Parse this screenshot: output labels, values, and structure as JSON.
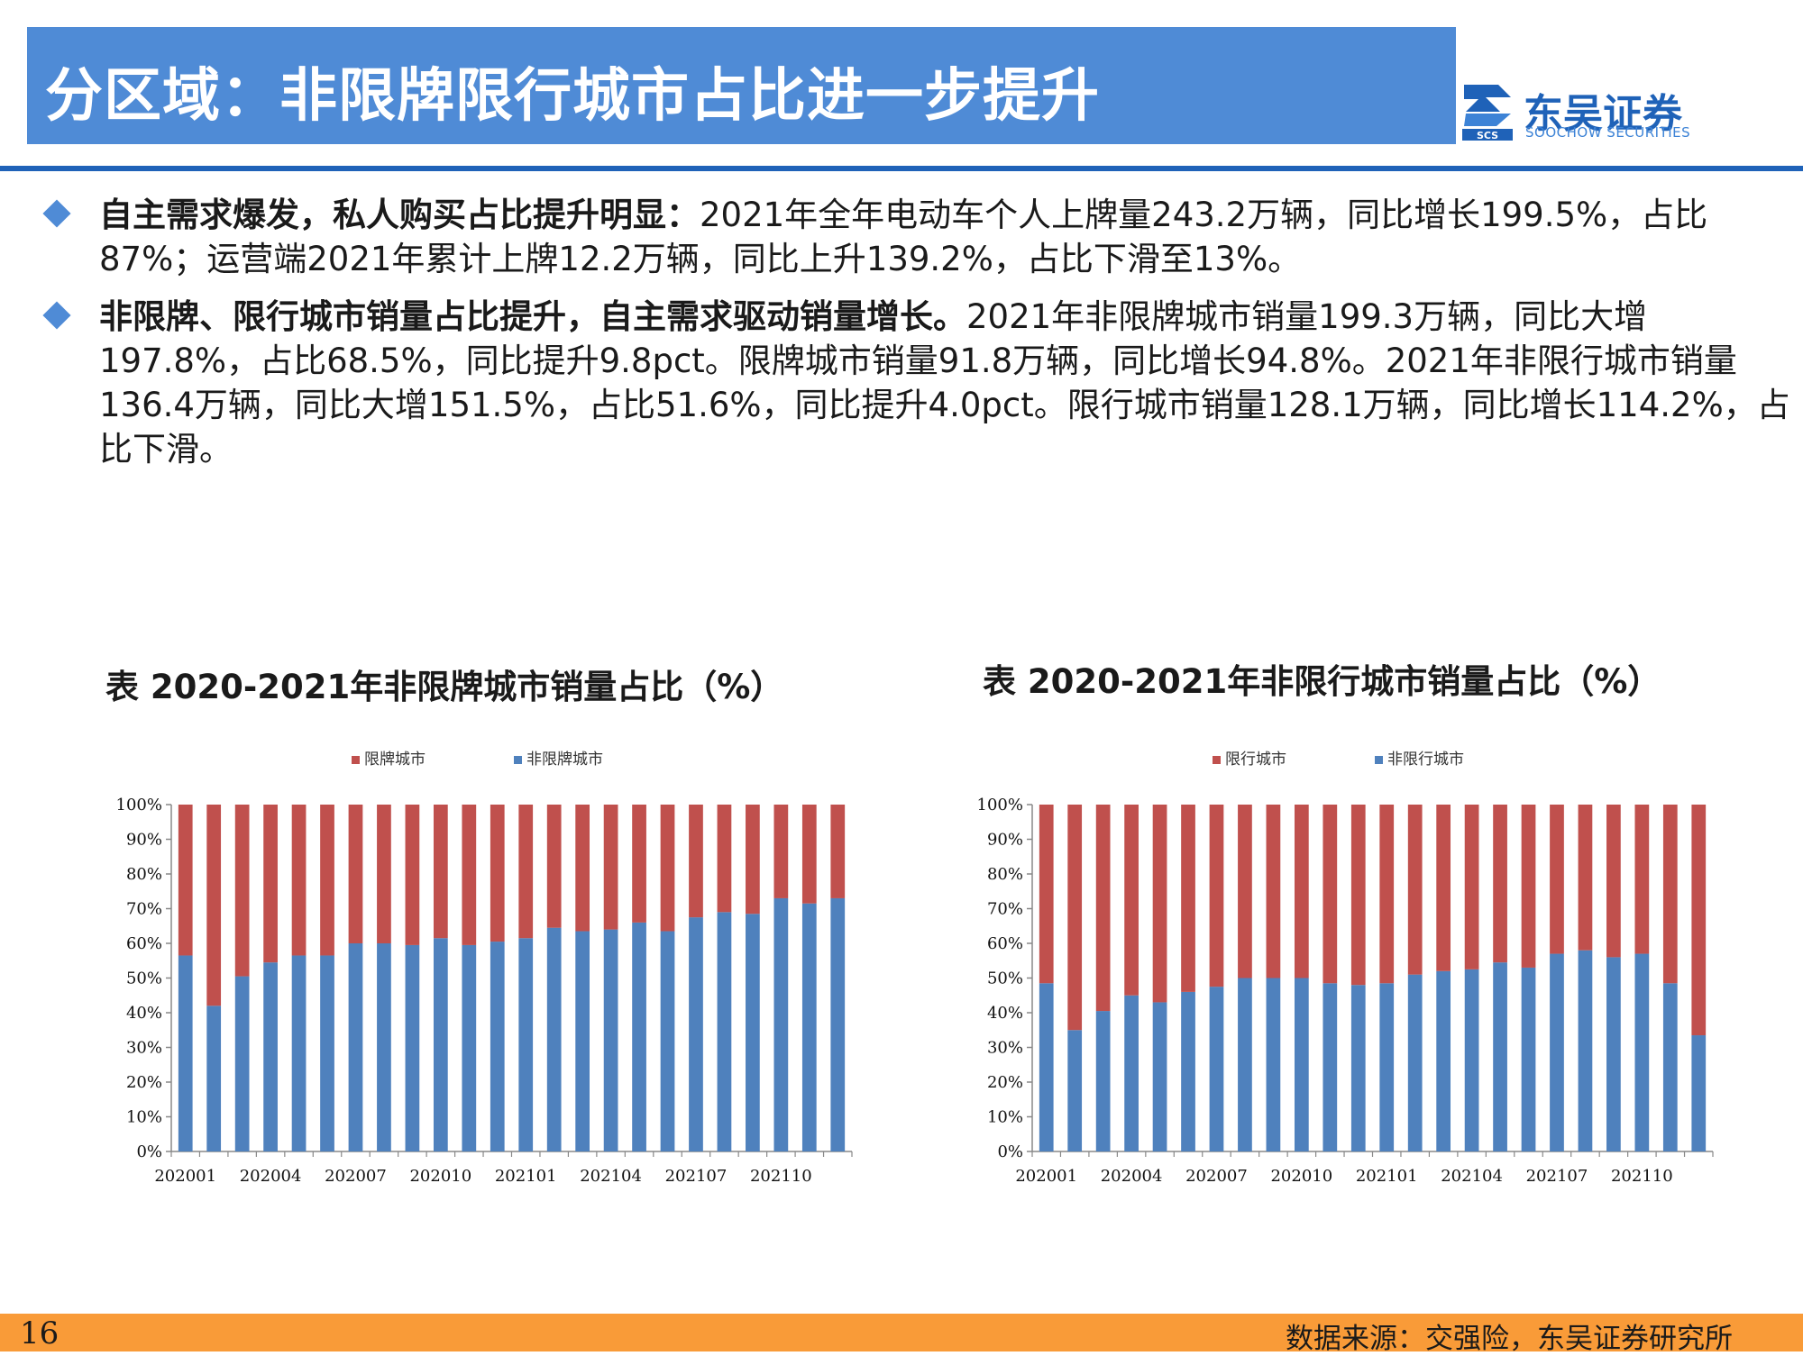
{
  "header": {
    "title": "分区域：非限牌限行城市占比进一步提升",
    "logo_cn": "东吴证券",
    "logo_en": "SOOCHOW SECURITIES",
    "logo_mark_text": "SCS"
  },
  "bullets": [
    {
      "bold": "自主需求爆发，私人购买占比提升明显：",
      "text": "2021年全年电动车个人上牌量243.2万辆，同比增长199.5%，占比87%；运营端2021年累计上牌12.2万辆，同比上升139.2%，占比下滑至13%。"
    },
    {
      "bold": "非限牌、限行城市销量占比提升，自主需求驱动销量增长。",
      "text": "2021年非限牌城市销量199.3万辆，同比大增197.8%，占比68.5%，同比提升9.8pct。限牌城市销量91.8万辆，同比增长94.8%。2021年非限行城市销量136.4万辆，同比大增151.5%，占比51.6%，同比提升4.0pct。限行城市销量128.1万辆，同比增长114.2%，占比下滑。"
    }
  ],
  "colors": {
    "blue": "#4f81bd",
    "red": "#c0504d",
    "axis": "#888888"
  },
  "chart_data": [
    {
      "type": "bar",
      "stacked": true,
      "percent": true,
      "title": "表 2020-2021年非限牌城市销量占比（%）",
      "x": [
        "202001",
        "202002",
        "202003",
        "202004",
        "202005",
        "202006",
        "202007",
        "202008",
        "202009",
        "202010",
        "202011",
        "202012",
        "202101",
        "202102",
        "202103",
        "202104",
        "202105",
        "202106",
        "202107",
        "202108",
        "202109",
        "202110",
        "202111",
        "202112"
      ],
      "x_tick_labels": [
        "202001",
        "202004",
        "202007",
        "202010",
        "202101",
        "202104",
        "202107",
        "202110"
      ],
      "y_tick_labels": [
        "0%",
        "10%",
        "20%",
        "30%",
        "40%",
        "50%",
        "60%",
        "70%",
        "80%",
        "90%",
        "100%"
      ],
      "ylim": [
        0,
        100
      ],
      "legend": "top-center",
      "series": [
        {
          "name": "限牌城市",
          "color": "#c0504d",
          "values": [
            43.5,
            58,
            49.5,
            45.5,
            43.5,
            43.5,
            40,
            40,
            40.5,
            38.5,
            40.5,
            39.5,
            38.5,
            35.5,
            36.5,
            36,
            34,
            36.5,
            32.5,
            31,
            31.5,
            27,
            28.5,
            27
          ]
        },
        {
          "name": "非限牌城市",
          "color": "#4f81bd",
          "values": [
            56.5,
            42,
            50.5,
            54.5,
            56.5,
            56.5,
            60,
            60,
            59.5,
            61.5,
            59.5,
            60.5,
            61.5,
            64.5,
            63.5,
            64,
            66,
            63.5,
            67.5,
            69,
            68.5,
            73,
            71.5,
            73
          ]
        }
      ]
    },
    {
      "type": "bar",
      "stacked": true,
      "percent": true,
      "title": "表  2020-2021年非限行城市销量占比（%）",
      "x": [
        "202001",
        "202002",
        "202003",
        "202004",
        "202005",
        "202006",
        "202007",
        "202008",
        "202009",
        "202010",
        "202011",
        "202012",
        "202101",
        "202102",
        "202103",
        "202104",
        "202105",
        "202106",
        "202107",
        "202108",
        "202109",
        "202110",
        "202111",
        "202112"
      ],
      "x_tick_labels": [
        "202001",
        "202004",
        "202007",
        "202010",
        "202101",
        "202104",
        "202107",
        "202110"
      ],
      "y_tick_labels": [
        "0%",
        "10%",
        "20%",
        "30%",
        "40%",
        "50%",
        "60%",
        "70%",
        "80%",
        "90%",
        "100%"
      ],
      "ylim": [
        0,
        100
      ],
      "legend": "top-center",
      "series": [
        {
          "name": "限行城市",
          "color": "#c0504d",
          "values": [
            51.5,
            65,
            59.5,
            55,
            57,
            54,
            52.5,
            50,
            50,
            50,
            51.5,
            52,
            51.5,
            49,
            48,
            47.5,
            45.5,
            47,
            43,
            42,
            44,
            43,
            51.5,
            66.5
          ]
        },
        {
          "name": "非限行城市",
          "color": "#4f81bd",
          "values": [
            48.5,
            35,
            40.5,
            45,
            43,
            46,
            47.5,
            50,
            50,
            50,
            48.5,
            48,
            48.5,
            51,
            52,
            52.5,
            54.5,
            53,
            57,
            58,
            56,
            57,
            48.5,
            33.5
          ]
        }
      ]
    }
  ],
  "footer": {
    "page_number": "16",
    "source": "数据来源：交强险，东吴证券研究所"
  }
}
